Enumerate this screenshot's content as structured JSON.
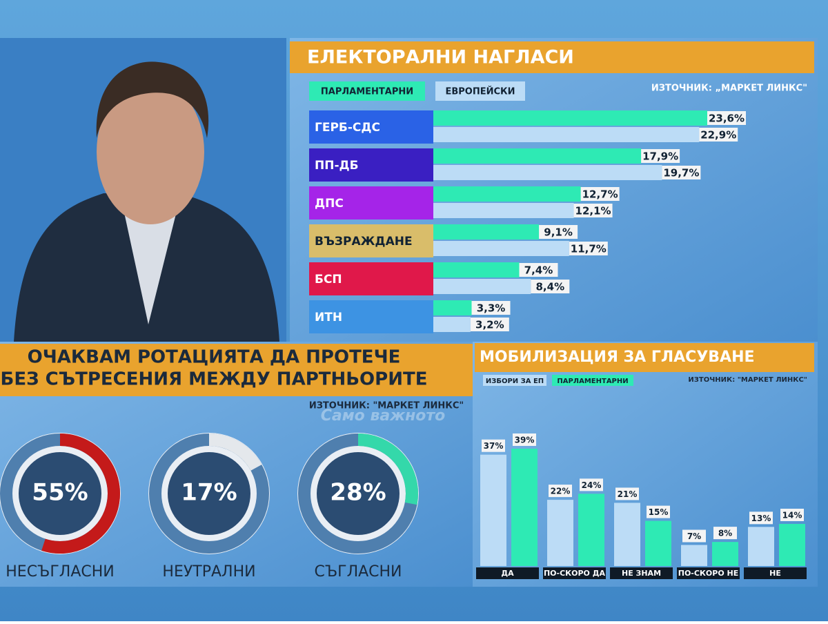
{
  "chart_data": [
    {
      "type": "hbar",
      "title": "ЕЛЕКТОРАЛНИ НАГЛАСИ",
      "source": "ИЗТОЧНИК: „МАРКЕТ ЛИНКС\"",
      "categories": [
        "ГЕРБ-СДС",
        "ПП-ДБ",
        "ДПС",
        "ВЪЗРАЖДАНЕ",
        "БСП",
        "ИТН"
      ],
      "category_colors": [
        "#2a62e6",
        "#3a1fc2",
        "#a524e8",
        "#d9bd6a",
        "#e0184a",
        "#3d93e3"
      ],
      "series": [
        {
          "name": "ПАРЛАМЕНТАРНИ",
          "color": "#2eeab4",
          "values": [
            23.6,
            17.9,
            12.7,
            9.1,
            7.4,
            3.3
          ],
          "value_labels": [
            "23,6%",
            "17,9%",
            "12,7%",
            "9,1%",
            "7,4%",
            "3,3%"
          ]
        },
        {
          "name": "ЕВРОПЕЙСКИ",
          "color": "#bcdcf6",
          "values": [
            22.9,
            19.7,
            12.1,
            11.7,
            8.4,
            3.2
          ],
          "value_labels": [
            "22,9%",
            "19,7%",
            "12,1%",
            "11,7%",
            "8,4%",
            "3,2%"
          ]
        }
      ]
    },
    {
      "type": "donut",
      "title": [
        "ОЧАКВАМ РОТАЦИЯТА ДА ПРОТЕЧЕ",
        "БЕЗ СЪТРЕСЕНИЯ МЕЖДУ ПАРТНЬОРИТЕ"
      ],
      "source": "ИЗТОЧНИК: \"МАРКЕТ ЛИНКС\"",
      "categories": [
        "НЕСЪГЛАСНИ",
        "НЕУТРАЛНИ",
        "СЪГЛАСНИ"
      ],
      "values": [
        55,
        17,
        28
      ],
      "value_labels": [
        "55%",
        "17%",
        "28%"
      ],
      "colors": [
        "#c41a1a",
        "#e4e8ec",
        "#34d8aa"
      ]
    },
    {
      "type": "vbar",
      "title": "МОБИЛИЗАЦИЯ ЗА ГЛАСУВАНЕ",
      "source": "ИЗТОЧНИК: \"МАРКЕТ ЛИНКС\"",
      "categories": [
        "ДА",
        "ПО-СКОРО ДА",
        "НЕ ЗНАМ",
        "ПО-СКОРО НЕ",
        "НЕ"
      ],
      "series": [
        {
          "name": "ИЗБОРИ ЗА ЕП",
          "color": "#bcdcf6",
          "values": [
            37,
            22,
            21,
            7,
            13
          ],
          "value_labels": [
            "37%",
            "22%",
            "21%",
            "7%",
            "13%"
          ]
        },
        {
          "name": "ПАРЛАМЕНТАРНИ",
          "color": "#2eeab4",
          "values": [
            39,
            24,
            15,
            8,
            14
          ],
          "value_labels": [
            "39%",
            "24%",
            "15%",
            "8%",
            "14%"
          ]
        }
      ]
    }
  ],
  "watermark": "Само важното"
}
